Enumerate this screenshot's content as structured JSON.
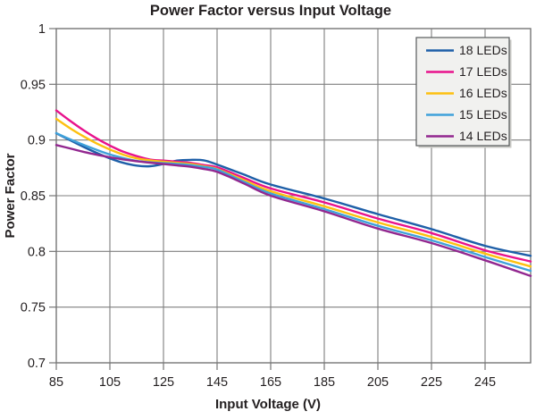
{
  "figure": {
    "background": "#ffffff",
    "grid_color": "#7f7f7f",
    "border_color": "#767676",
    "text_color": "#231f20",
    "legend": {
      "position": "upper-right",
      "background": "#f1f1ef",
      "border": "#58595b",
      "shadow": "#c9c9c5",
      "entries": [
        {
          "label": "18 LEDs",
          "color": "#1e5fa8"
        },
        {
          "label": "17 LEDs",
          "color": "#e8128c"
        },
        {
          "label": "16 LEDs",
          "color": "#fdc010"
        },
        {
          "label": "15 LEDs",
          "color": "#3fa1da"
        },
        {
          "label": "14 LEDs",
          "color": "#92278f"
        }
      ]
    }
  },
  "chart_data": {
    "type": "line",
    "title": "Power Factor versus Input Voltage",
    "xlabel": "Input Voltage (V)",
    "ylabel": "Power Factor",
    "xlim": [
      85,
      262
    ],
    "ylim": [
      0.7,
      1.0
    ],
    "grid": true,
    "legend_position": "upper right",
    "x_ticks": [
      85,
      105,
      125,
      145,
      165,
      185,
      205,
      225,
      245
    ],
    "x_tick_labels": [
      "85",
      "105",
      "125",
      "145",
      "165",
      "185",
      "205",
      "225",
      "245"
    ],
    "y_ticks": [
      1.0,
      0.95,
      0.9,
      0.85,
      0.8,
      0.75,
      0.7
    ],
    "y_tick_labels": [
      "1",
      "0.95",
      "0.9",
      "0.85",
      "0.8",
      "0.75",
      "0.7"
    ],
    "x": [
      85,
      90,
      95,
      100,
      105,
      110,
      115,
      120,
      125,
      130,
      135,
      140,
      145,
      155,
      165,
      185,
      205,
      225,
      245,
      262
    ],
    "series": [
      {
        "name": "18 LEDs",
        "color": "#1e5fa8",
        "values": [
          0.906,
          0.9,
          0.894,
          0.8885,
          0.8835,
          0.8795,
          0.877,
          0.8765,
          0.8785,
          0.8815,
          0.8822,
          0.8818,
          0.878,
          0.869,
          0.86,
          0.8475,
          0.8335,
          0.82,
          0.805,
          0.796
        ]
      },
      {
        "name": "17 LEDs",
        "color": "#e8128c",
        "values": [
          0.9265,
          0.9175,
          0.909,
          0.9015,
          0.895,
          0.8895,
          0.8855,
          0.8825,
          0.8815,
          0.8805,
          0.8795,
          0.8775,
          0.8755,
          0.866,
          0.8565,
          0.844,
          0.8295,
          0.8165,
          0.801,
          0.791
        ]
      },
      {
        "name": "16 LEDs",
        "color": "#fdc010",
        "values": [
          0.919,
          0.9108,
          0.9035,
          0.897,
          0.8915,
          0.8868,
          0.8835,
          0.8818,
          0.8805,
          0.8795,
          0.8785,
          0.8765,
          0.874,
          0.864,
          0.854,
          0.8405,
          0.826,
          0.813,
          0.798,
          0.7865
        ]
      },
      {
        "name": "15 LEDs",
        "color": "#3fa1da",
        "values": [
          0.9062,
          0.9008,
          0.8958,
          0.8912,
          0.887,
          0.8838,
          0.8812,
          0.88,
          0.8792,
          0.8785,
          0.8775,
          0.8758,
          0.8735,
          0.8625,
          0.852,
          0.838,
          0.823,
          0.81,
          0.795,
          0.7825
        ]
      },
      {
        "name": "14 LEDs",
        "color": "#92278f",
        "values": [
          0.8955,
          0.8925,
          0.8895,
          0.8868,
          0.8845,
          0.8826,
          0.881,
          0.8796,
          0.8784,
          0.8772,
          0.876,
          0.874,
          0.8715,
          0.861,
          0.85,
          0.836,
          0.8205,
          0.8075,
          0.792,
          0.778
        ]
      }
    ]
  }
}
